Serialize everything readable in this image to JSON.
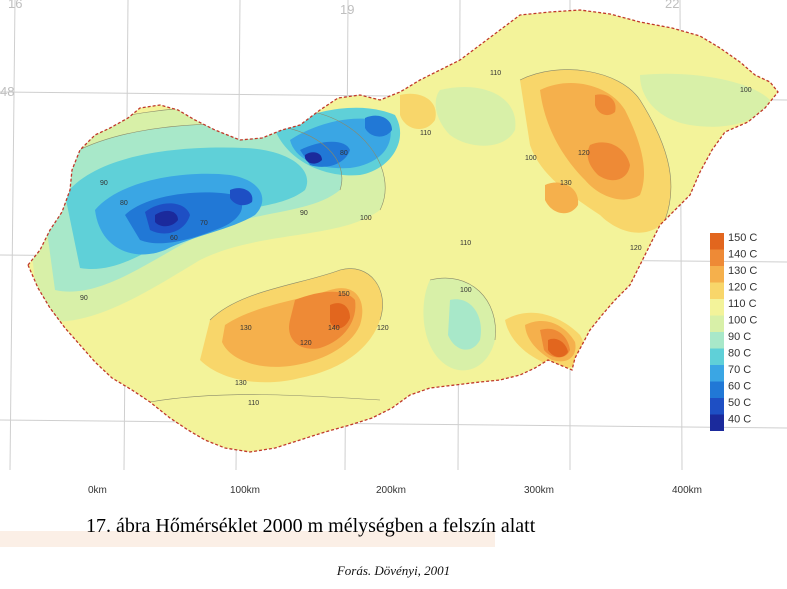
{
  "map": {
    "coordinate_labels": [
      "16",
      "19",
      "22",
      "48"
    ],
    "contour_labels": [
      "90",
      "80",
      "70",
      "60",
      "90",
      "80",
      "100",
      "110",
      "120",
      "130",
      "140",
      "150",
      "110",
      "120",
      "100",
      "130",
      "110",
      "100",
      "120",
      "130",
      "100",
      "90",
      "110",
      "120"
    ],
    "colors": {
      "40": "#1b2a9c",
      "50": "#1e4fc4",
      "60": "#2178d6",
      "70": "#3aa6e4",
      "80": "#5fd0d8",
      "90": "#a8e8c9",
      "100": "#d8f0a8",
      "110": "#f3f39a",
      "120": "#f8d66a",
      "130": "#f5b04c",
      "140": "#ee8a36",
      "150": "#e2661e",
      "border": "#c0392b"
    }
  },
  "legend": {
    "items": [
      "150 C",
      "140 C",
      "130 C",
      "120 C",
      "110 C",
      "100 C",
      "90 C",
      "80 C",
      "70 C",
      "60 C",
      "50 C",
      "40 C"
    ],
    "colors": [
      "#e2661e",
      "#ee8a36",
      "#f5b04c",
      "#f8d66a",
      "#f3f39a",
      "#d8f0a8",
      "#a8e8c9",
      "#5fd0d8",
      "#3aa6e4",
      "#2178d6",
      "#1e4fc4",
      "#1b2a9c"
    ]
  },
  "scale": {
    "labels": [
      "0km",
      "100km",
      "200km",
      "300km",
      "400km"
    ]
  },
  "caption": "17. ábra Hőmérséklet 2000 m mélységben a felszín alatt",
  "source": "Forás. Dövényi, 2001"
}
